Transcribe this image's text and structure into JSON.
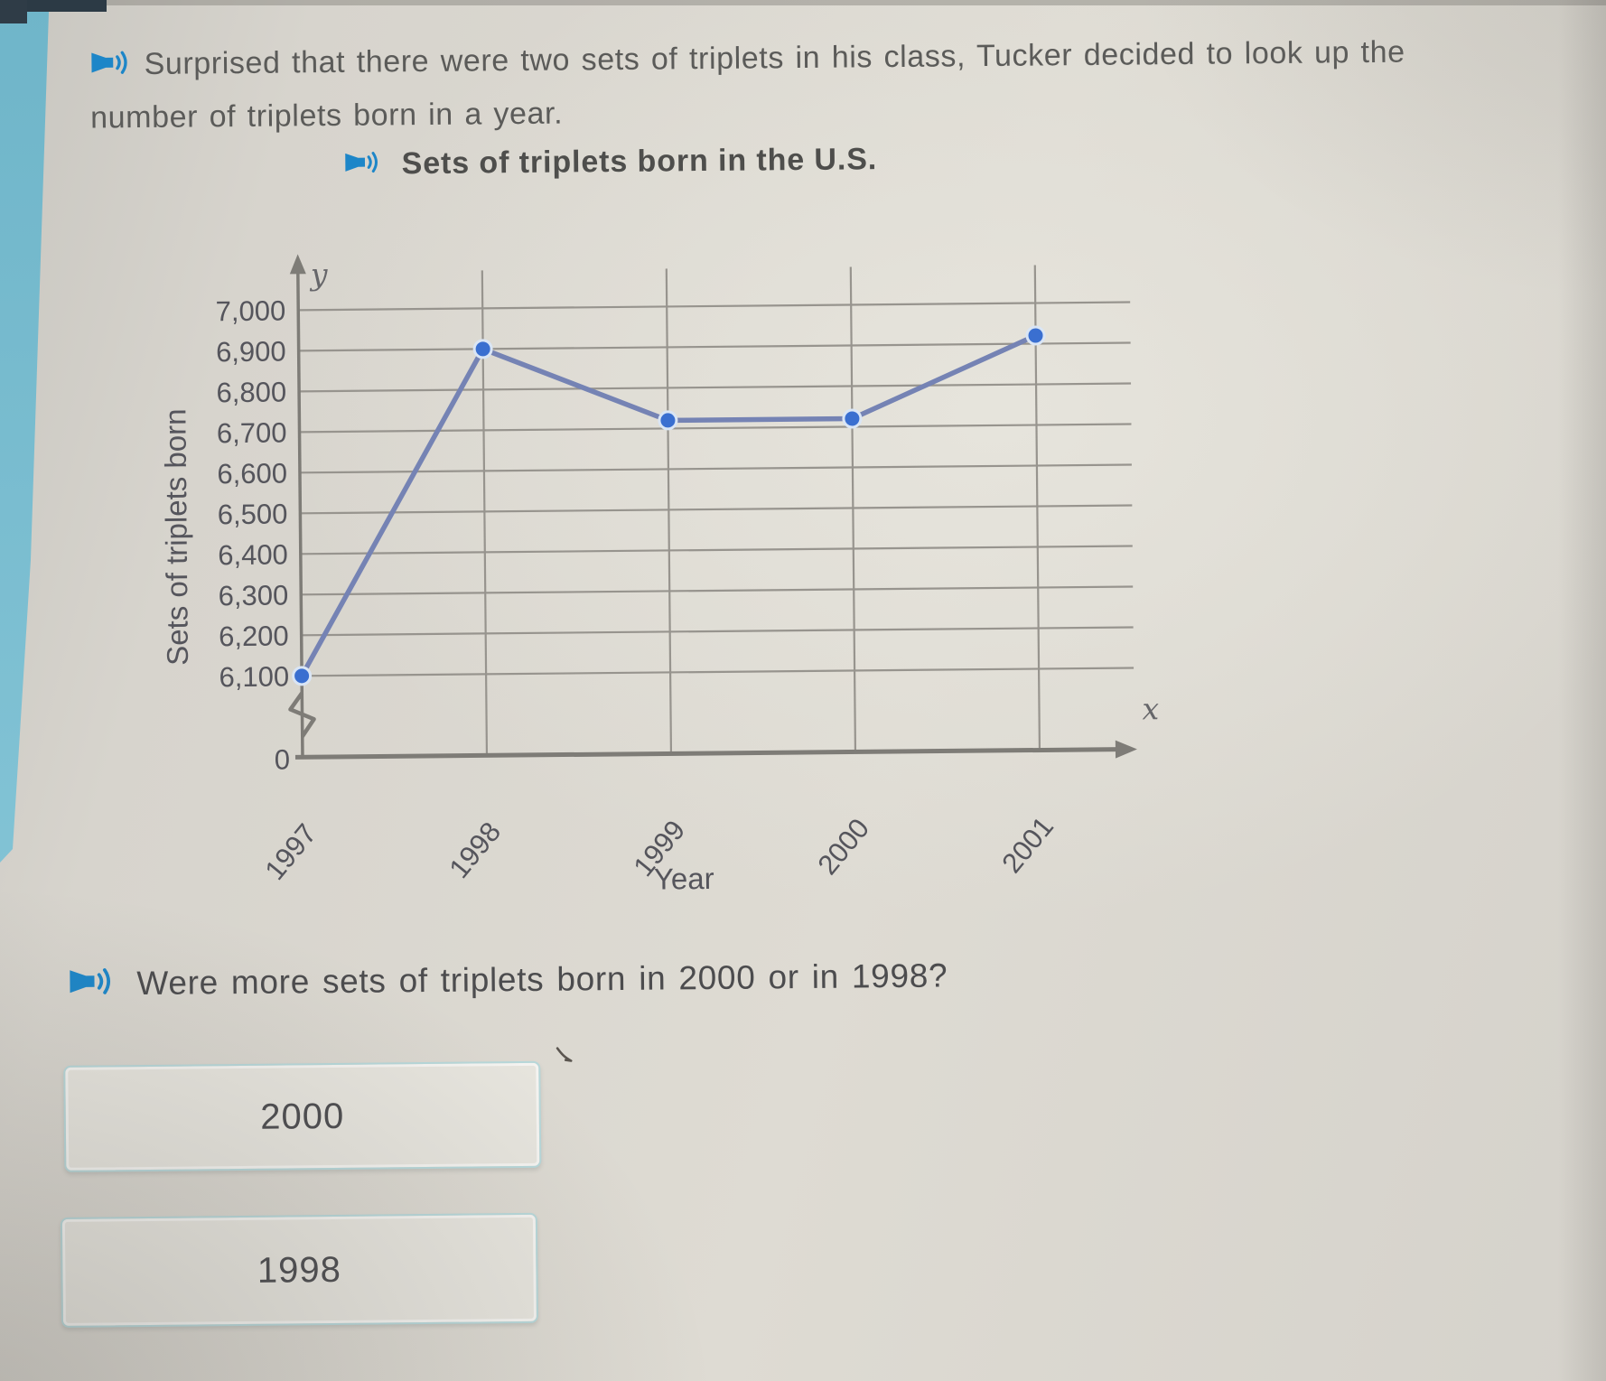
{
  "page": {
    "background": "#d9d6cf",
    "accent_teal": "#79bccf",
    "speaker_blue": "#1d86c8",
    "text_gray": "#5b5b59"
  },
  "prompt": {
    "line1": "Surprised that there were two sets of triplets in his class, Tucker decided to look up the",
    "line2": "number of triplets born in a year."
  },
  "chart_title": "Sets of triplets born in the U.S.",
  "chart_data": {
    "type": "line",
    "title": "Sets of triplets born in the U.S.",
    "x": [
      "1997",
      "1998",
      "1999",
      "2000",
      "2001"
    ],
    "values": [
      6100,
      6900,
      6720,
      6720,
      6920
    ],
    "xlabel": "Year",
    "ylabel": "Sets of triplets born",
    "ylim": [
      6100,
      7000
    ],
    "ytick_step": 100,
    "yticks": [
      "7,000",
      "6,900",
      "6,800",
      "6,700",
      "6,600",
      "6,500",
      "6,400",
      "6,300",
      "6,200",
      "6,100"
    ],
    "origin_label": "0",
    "axis_break": true,
    "axis_letter_x": "x",
    "axis_letter_y": "y",
    "grid": true,
    "legend": "none",
    "line_color": "#7583b4",
    "point_color": "#3a6fd0",
    "grid_color": "#97948e",
    "axis_color": "#7e7c77",
    "label_color": "#55555c"
  },
  "question": {
    "text": "Were more sets of triplets born in 2000 or in 1998?"
  },
  "answers": [
    {
      "label": "2000"
    },
    {
      "label": "1998"
    }
  ]
}
